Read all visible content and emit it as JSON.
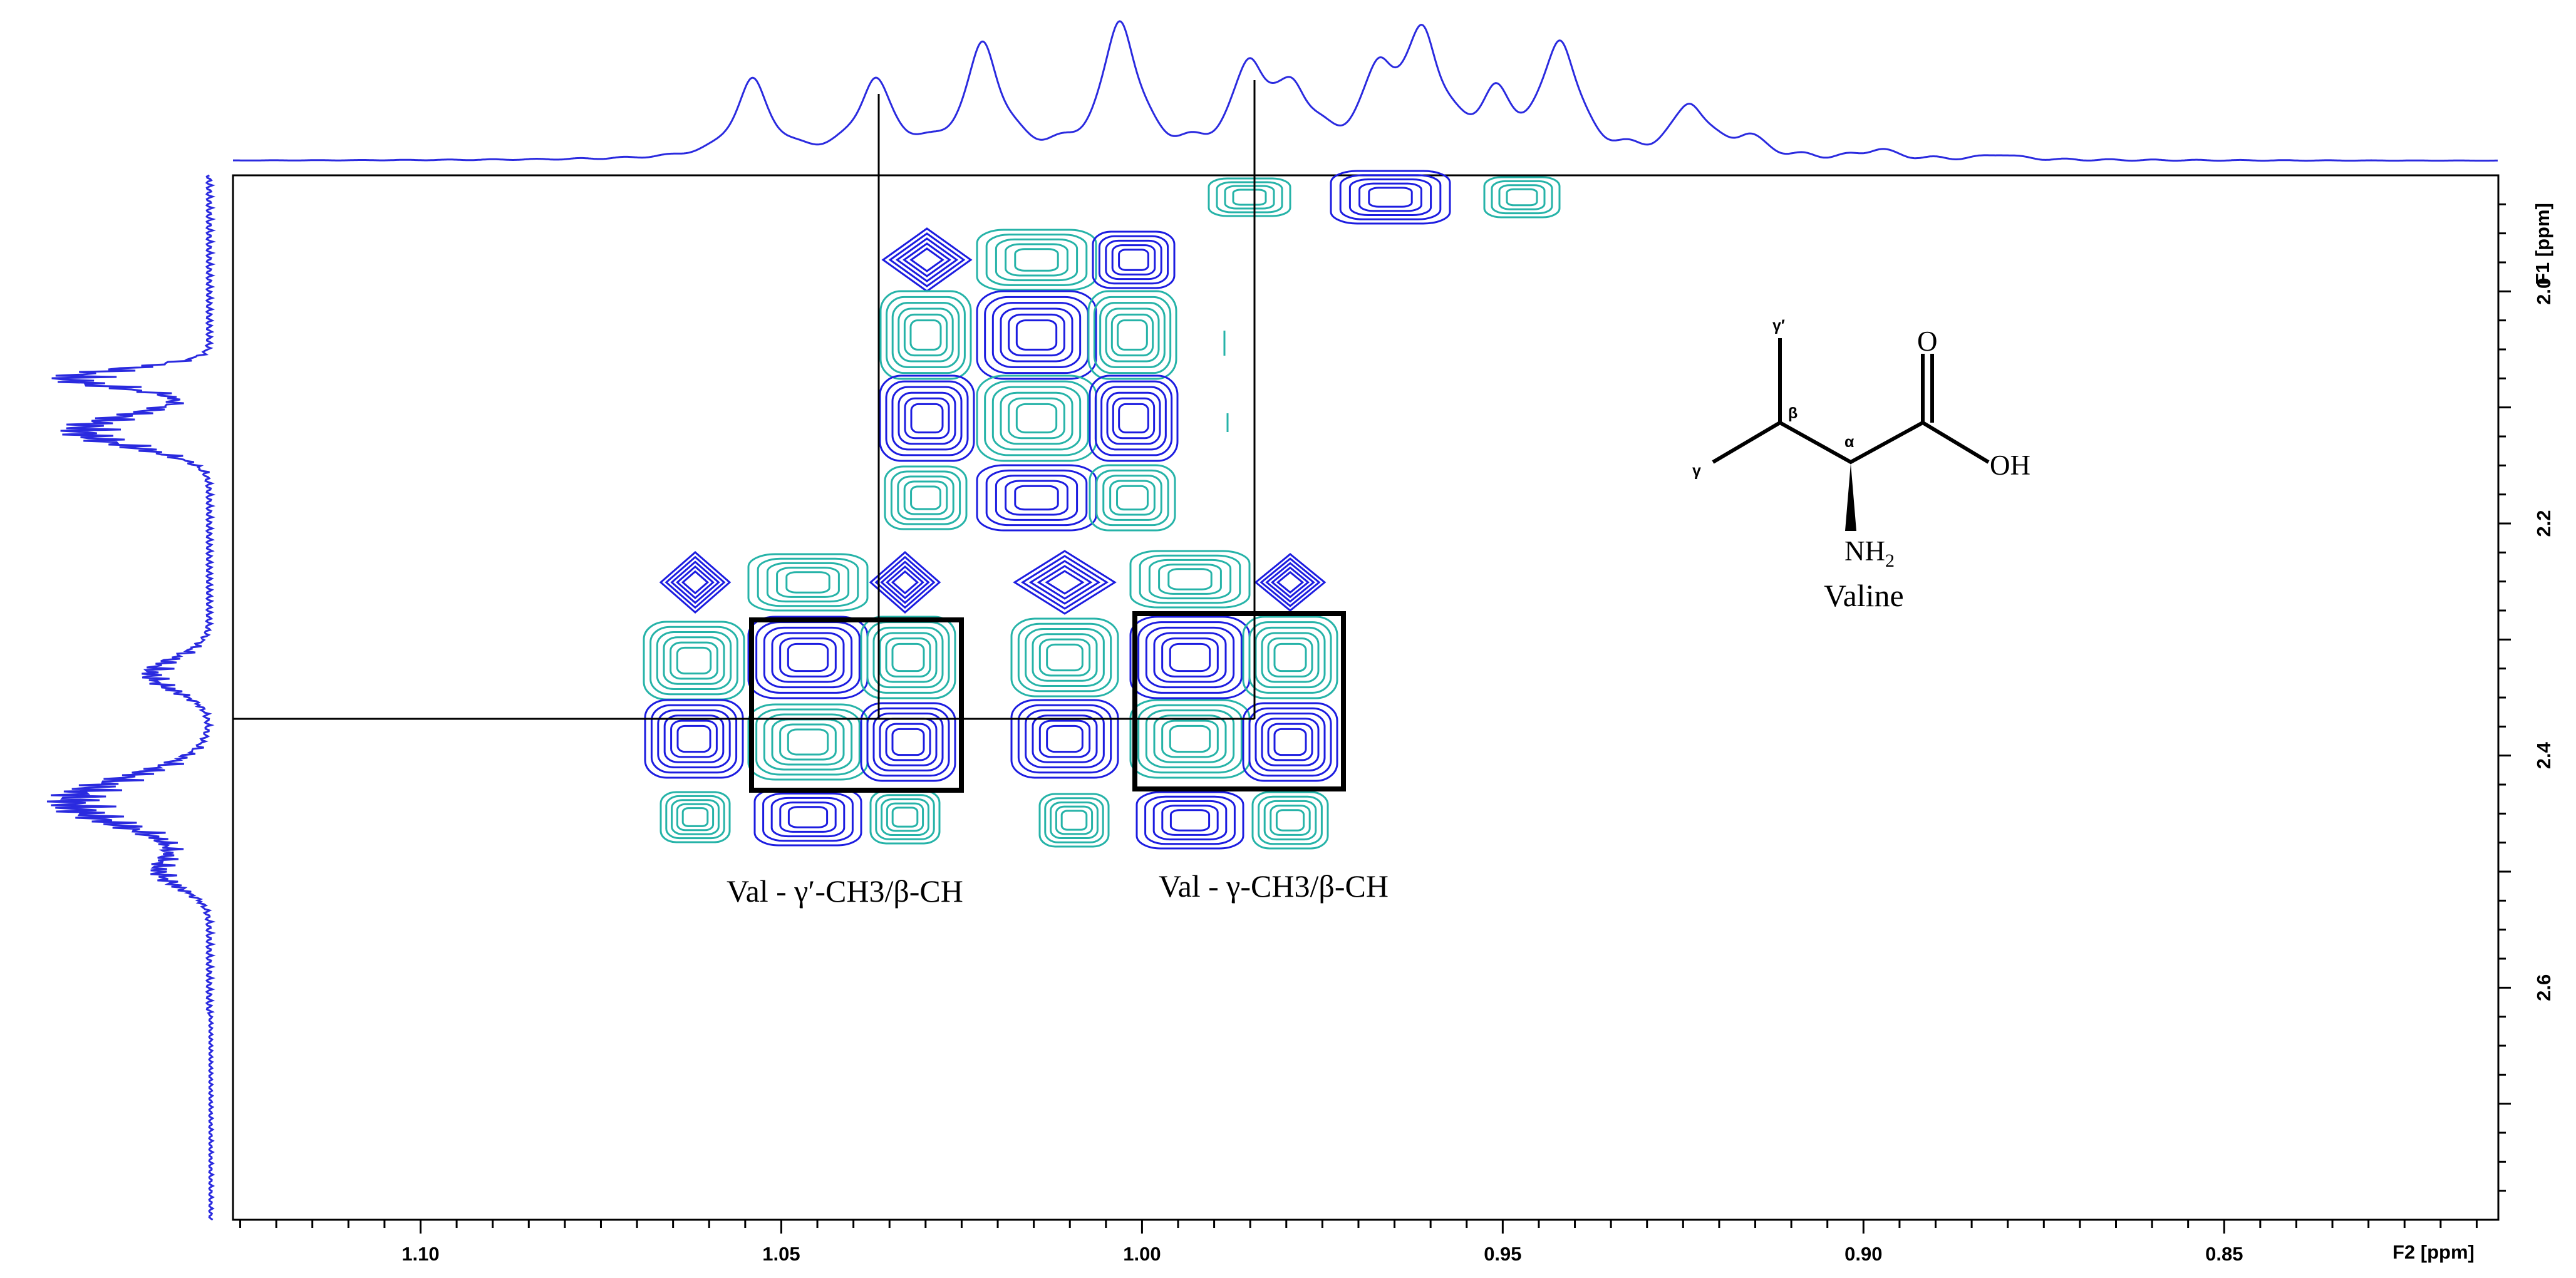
{
  "chart_data": {
    "type": "2d-nmr-contour",
    "xlabel": "F2 [ppm]",
    "ylabel": "F1 [ppm]",
    "xlim": [
      1.126,
      0.812
    ],
    "ylim": [
      1.9,
      2.8
    ],
    "xticks": [
      "1.10",
      "1.05",
      "1.00",
      "0.95",
      "0.90",
      "0.85"
    ],
    "yticks": [
      "2.0",
      "2.2",
      "2.4",
      "2.6"
    ],
    "projection_f2_peaks": [
      {
        "ppm": 1.054,
        "height": 0.58
      },
      {
        "ppm": 1.037,
        "height": 0.56
      },
      {
        "ppm": 1.022,
        "height": 0.83
      },
      {
        "ppm": 1.003,
        "height": 1.0
      },
      {
        "ppm": 0.985,
        "height": 0.64
      },
      {
        "ppm": 0.979,
        "height": 0.43
      },
      {
        "ppm": 0.967,
        "height": 0.56
      },
      {
        "ppm": 0.961,
        "height": 0.84
      },
      {
        "ppm": 0.951,
        "height": 0.38
      },
      {
        "ppm": 0.942,
        "height": 0.84
      },
      {
        "ppm": 0.924,
        "height": 0.39
      },
      {
        "ppm": 0.916,
        "height": 0.14
      },
      {
        "ppm": 0.898,
        "height": 0.07
      },
      {
        "ppm": 0.881,
        "height": 0.04
      }
    ],
    "crosspeak_groups": [
      {
        "f2_center": 1.033,
        "f1_center": 2.35,
        "label": "Val - γ′-CH3/β-CH"
      },
      {
        "f2_center": 0.98,
        "f1_center": 2.35,
        "label": "Val - γ-CH3/β-CH"
      },
      {
        "f2_center": 1.017,
        "f1_center": 2.05,
        "label": ""
      }
    ],
    "reference_lines": {
      "f2": [
        1.037,
        0.985
      ],
      "f1": [
        2.34
      ]
    },
    "grid": false,
    "colors": {
      "positive": "#1c1ce0",
      "negative": "#26b3a8",
      "projection": "#2a2adf"
    }
  },
  "labels": {
    "box1": "Val - γ′-CH3/β-CH",
    "box2": "Val - γ-CH3/β-CH"
  },
  "molecule": {
    "name": "Valine",
    "gamma_prime": "γ′",
    "gamma": "γ",
    "beta": "β",
    "alpha": "α",
    "carbonyl_o": "O",
    "hydroxyl": "OH",
    "amine": "NH2"
  }
}
